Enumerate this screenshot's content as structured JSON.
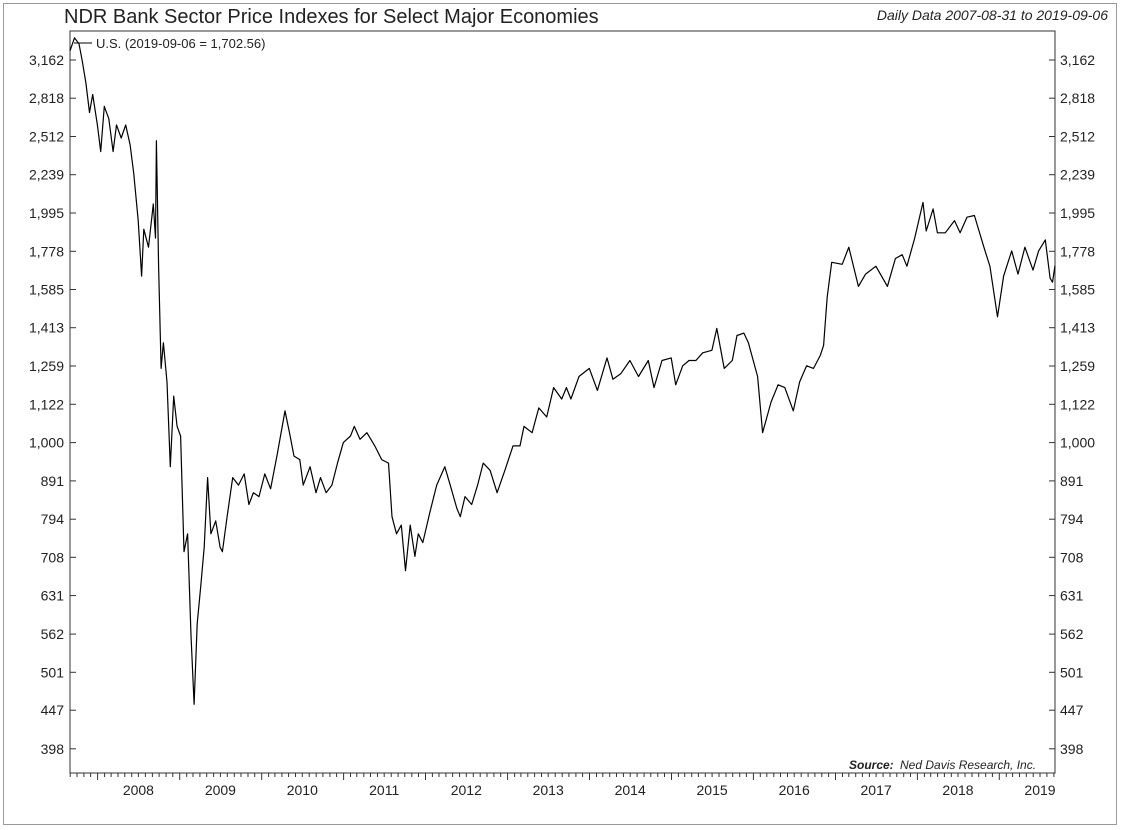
{
  "header": {
    "title": "NDR Bank Sector Price Indexes for Select Major Economies",
    "date_range": "Daily Data 2007-08-31 to 2019-09-06"
  },
  "chart_data": {
    "type": "line",
    "title": "NDR Bank Sector Price Indexes for Select Major Economies",
    "subtitle": "Daily Data 2007-08-31 to 2019-09-06",
    "y_scale": "log",
    "ylim": [
      370,
      3450
    ],
    "xlim": [
      "2007-08-31",
      "2019-09-06"
    ],
    "y_ticks": [
      398,
      447,
      501,
      562,
      631,
      708,
      794,
      891,
      1000,
      1122,
      1259,
      1413,
      1585,
      1778,
      1995,
      2239,
      2512,
      2818,
      3162
    ],
    "y_tick_labels": [
      "398",
      "447",
      "501",
      "562",
      "631",
      "708",
      "794",
      "891",
      "1,000",
      "1,122",
      "1,259",
      "1,413",
      "1,585",
      "1,778",
      "1,995",
      "2,239",
      "2,512",
      "2,818",
      "3,162"
    ],
    "x_tick_labels": [
      "2008",
      "2009",
      "2010",
      "2011",
      "2012",
      "2013",
      "2014",
      "2015",
      "2016",
      "2017",
      "2018",
      "2019"
    ],
    "grid": false,
    "legend_position": "top-left",
    "source_label": "Source:",
    "source_text": "Ned Davis Research, Inc.",
    "series": [
      {
        "name": "U.S. (2019-09-06 = 1,702.56)",
        "color": "#000000",
        "points": [
          [
            "2007-08-31",
            3250
          ],
          [
            "2007-09-20",
            3380
          ],
          [
            "2007-10-10",
            3320
          ],
          [
            "2007-10-25",
            3150
          ],
          [
            "2007-11-10",
            2950
          ],
          [
            "2007-11-26",
            2700
          ],
          [
            "2007-12-10",
            2850
          ],
          [
            "2007-12-31",
            2600
          ],
          [
            "2008-01-15",
            2400
          ],
          [
            "2008-01-31",
            2750
          ],
          [
            "2008-02-20",
            2650
          ],
          [
            "2008-03-10",
            2400
          ],
          [
            "2008-03-25",
            2600
          ],
          [
            "2008-04-15",
            2500
          ],
          [
            "2008-05-05",
            2600
          ],
          [
            "2008-05-25",
            2450
          ],
          [
            "2008-06-10",
            2250
          ],
          [
            "2008-06-30",
            1950
          ],
          [
            "2008-07-15",
            1650
          ],
          [
            "2008-07-25",
            1900
          ],
          [
            "2008-08-15",
            1800
          ],
          [
            "2008-09-05",
            2050
          ],
          [
            "2008-09-15",
            1850
          ],
          [
            "2008-09-19",
            2480
          ],
          [
            "2008-09-29",
            1700
          ],
          [
            "2008-10-10",
            1250
          ],
          [
            "2008-10-20",
            1350
          ],
          [
            "2008-11-05",
            1200
          ],
          [
            "2008-11-20",
            930
          ],
          [
            "2008-12-05",
            1150
          ],
          [
            "2008-12-20",
            1050
          ],
          [
            "2009-01-05",
            1020
          ],
          [
            "2009-01-20",
            720
          ],
          [
            "2009-02-05",
            760
          ],
          [
            "2009-02-20",
            560
          ],
          [
            "2009-03-06",
            455
          ],
          [
            "2009-03-20",
            580
          ],
          [
            "2009-04-05",
            650
          ],
          [
            "2009-04-20",
            730
          ],
          [
            "2009-05-05",
            900
          ],
          [
            "2009-05-20",
            760
          ],
          [
            "2009-06-10",
            790
          ],
          [
            "2009-06-30",
            730
          ],
          [
            "2009-07-10",
            720
          ],
          [
            "2009-07-31",
            800
          ],
          [
            "2009-08-25",
            900
          ],
          [
            "2009-09-20",
            880
          ],
          [
            "2009-10-15",
            910
          ],
          [
            "2009-11-05",
            830
          ],
          [
            "2009-11-25",
            860
          ],
          [
            "2009-12-20",
            850
          ],
          [
            "2010-01-15",
            910
          ],
          [
            "2010-02-10",
            870
          ],
          [
            "2010-03-10",
            960
          ],
          [
            "2010-04-15",
            1100
          ],
          [
            "2010-05-05",
            1030
          ],
          [
            "2010-05-25",
            960
          ],
          [
            "2010-06-20",
            950
          ],
          [
            "2010-07-05",
            880
          ],
          [
            "2010-08-05",
            930
          ],
          [
            "2010-08-31",
            860
          ],
          [
            "2010-09-20",
            900
          ],
          [
            "2010-10-15",
            860
          ],
          [
            "2010-11-10",
            880
          ],
          [
            "2010-12-05",
            940
          ],
          [
            "2010-12-31",
            1000
          ],
          [
            "2011-02-01",
            1020
          ],
          [
            "2011-02-18",
            1050
          ],
          [
            "2011-03-15",
            1010
          ],
          [
            "2011-04-15",
            1030
          ],
          [
            "2011-05-20",
            990
          ],
          [
            "2011-06-20",
            950
          ],
          [
            "2011-07-20",
            940
          ],
          [
            "2011-08-05",
            800
          ],
          [
            "2011-08-25",
            760
          ],
          [
            "2011-09-15",
            780
          ],
          [
            "2011-10-04",
            680
          ],
          [
            "2011-10-25",
            780
          ],
          [
            "2011-11-15",
            710
          ],
          [
            "2011-11-30",
            760
          ],
          [
            "2011-12-20",
            740
          ],
          [
            "2012-01-20",
            810
          ],
          [
            "2012-02-20",
            880
          ],
          [
            "2012-03-27",
            930
          ],
          [
            "2012-04-20",
            880
          ],
          [
            "2012-05-20",
            820
          ],
          [
            "2012-06-04",
            800
          ],
          [
            "2012-06-25",
            850
          ],
          [
            "2012-07-25",
            830
          ],
          [
            "2012-08-20",
            880
          ],
          [
            "2012-09-14",
            940
          ],
          [
            "2012-10-15",
            920
          ],
          [
            "2012-11-15",
            860
          ],
          [
            "2012-12-20",
            920
          ],
          [
            "2013-01-25",
            990
          ],
          [
            "2013-02-25",
            990
          ],
          [
            "2013-03-15",
            1050
          ],
          [
            "2013-04-20",
            1030
          ],
          [
            "2013-05-20",
            1110
          ],
          [
            "2013-06-24",
            1080
          ],
          [
            "2013-07-25",
            1180
          ],
          [
            "2013-08-30",
            1140
          ],
          [
            "2013-09-20",
            1180
          ],
          [
            "2013-10-10",
            1140
          ],
          [
            "2013-11-15",
            1220
          ],
          [
            "2013-12-31",
            1250
          ],
          [
            "2014-02-05",
            1170
          ],
          [
            "2014-03-20",
            1290
          ],
          [
            "2014-04-15",
            1210
          ],
          [
            "2014-05-20",
            1230
          ],
          [
            "2014-06-30",
            1280
          ],
          [
            "2014-08-07",
            1220
          ],
          [
            "2014-09-20",
            1280
          ],
          [
            "2014-10-15",
            1180
          ],
          [
            "2014-11-20",
            1280
          ],
          [
            "2014-12-31",
            1290
          ],
          [
            "2015-01-20",
            1190
          ],
          [
            "2015-02-20",
            1260
          ],
          [
            "2015-03-20",
            1280
          ],
          [
            "2015-04-20",
            1280
          ],
          [
            "2015-05-20",
            1310
          ],
          [
            "2015-06-30",
            1320
          ],
          [
            "2015-07-22",
            1410
          ],
          [
            "2015-08-24",
            1250
          ],
          [
            "2015-09-29",
            1280
          ],
          [
            "2015-10-20",
            1380
          ],
          [
            "2015-11-20",
            1390
          ],
          [
            "2015-12-10",
            1350
          ],
          [
            "2016-01-20",
            1220
          ],
          [
            "2016-02-11",
            1030
          ],
          [
            "2016-03-20",
            1130
          ],
          [
            "2016-04-20",
            1190
          ],
          [
            "2016-05-20",
            1180
          ],
          [
            "2016-06-27",
            1100
          ],
          [
            "2016-07-25",
            1200
          ],
          [
            "2016-08-25",
            1260
          ],
          [
            "2016-09-25",
            1250
          ],
          [
            "2016-10-25",
            1300
          ],
          [
            "2016-11-09",
            1340
          ],
          [
            "2016-11-25",
            1550
          ],
          [
            "2016-12-15",
            1720
          ],
          [
            "2017-01-31",
            1710
          ],
          [
            "2017-03-01",
            1800
          ],
          [
            "2017-04-13",
            1600
          ],
          [
            "2017-05-15",
            1660
          ],
          [
            "2017-06-30",
            1700
          ],
          [
            "2017-08-20",
            1600
          ],
          [
            "2017-09-25",
            1740
          ],
          [
            "2017-10-25",
            1760
          ],
          [
            "2017-11-15",
            1700
          ],
          [
            "2017-12-20",
            1850
          ],
          [
            "2018-01-26",
            2060
          ],
          [
            "2018-02-09",
            1890
          ],
          [
            "2018-03-12",
            2020
          ],
          [
            "2018-03-31",
            1880
          ],
          [
            "2018-05-05",
            1880
          ],
          [
            "2018-06-15",
            1950
          ],
          [
            "2018-07-10",
            1880
          ],
          [
            "2018-08-10",
            1970
          ],
          [
            "2018-09-12",
            1980
          ],
          [
            "2018-10-24",
            1800
          ],
          [
            "2018-11-20",
            1700
          ],
          [
            "2018-12-24",
            1460
          ],
          [
            "2019-01-20",
            1650
          ],
          [
            "2019-02-25",
            1780
          ],
          [
            "2019-03-25",
            1660
          ],
          [
            "2019-04-25",
            1800
          ],
          [
            "2019-05-31",
            1680
          ],
          [
            "2019-06-25",
            1780
          ],
          [
            "2019-07-25",
            1840
          ],
          [
            "2019-08-15",
            1640
          ],
          [
            "2019-08-26",
            1620
          ],
          [
            "2019-09-06",
            1702.56
          ]
        ]
      }
    ]
  }
}
